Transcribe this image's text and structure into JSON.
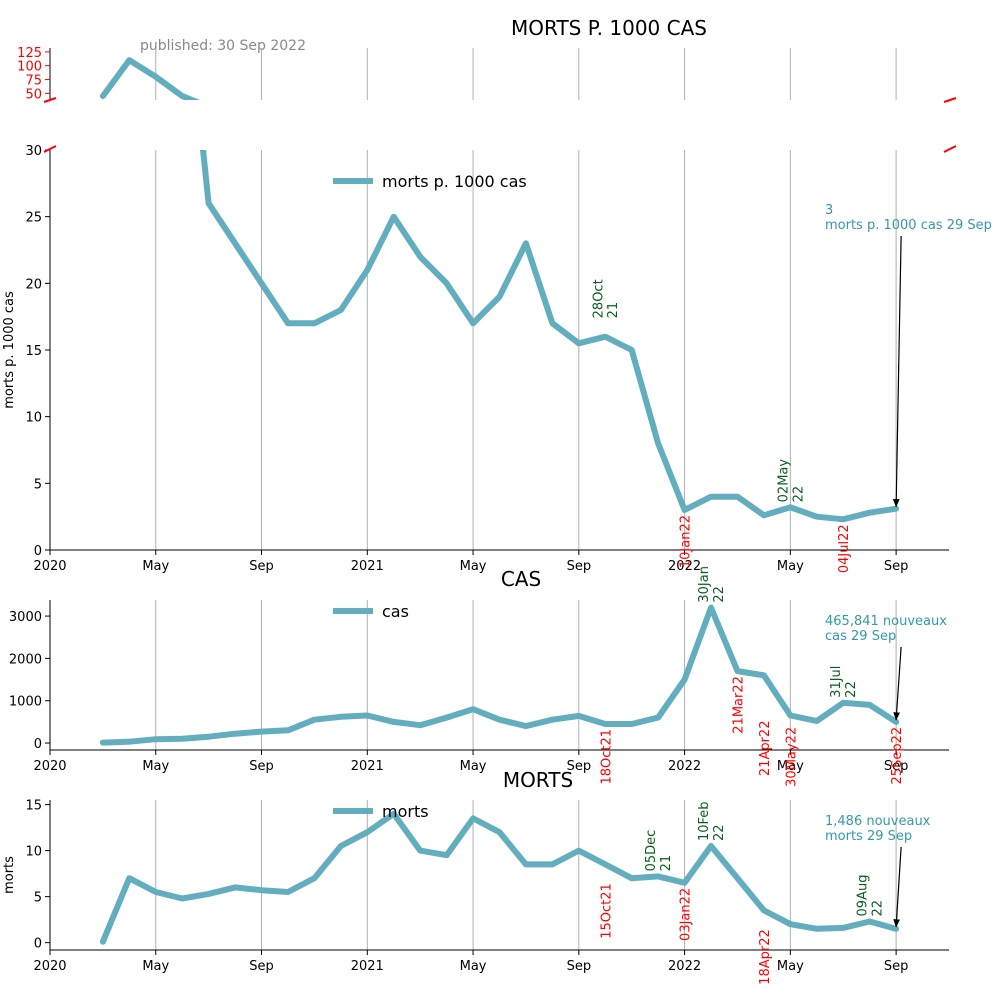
{
  "chart_data": [
    {
      "type": "line",
      "title": "MORTS P. 1000 CAS",
      "subtitle": "published: 30 Sep 2022",
      "ylabel": "morts p. 1000 cas",
      "x": [
        "2020-03",
        "2020-04",
        "2020-05",
        "2020-06",
        "2020-07",
        "2020-08",
        "2020-09",
        "2020-10",
        "2020-11",
        "2020-12",
        "2021-01",
        "2021-02",
        "2021-03",
        "2021-04",
        "2021-05",
        "2021-06",
        "2021-07",
        "2021-08",
        "2021-09",
        "2021-10",
        "2021-11",
        "2021-12",
        "2022-01",
        "2022-02",
        "2022-03",
        "2022-04",
        "2022-05",
        "2022-06",
        "2022-07",
        "2022-08",
        "2022-09"
      ],
      "series": [
        {
          "name": "morts p. 1000 cas",
          "color": "#62aebf",
          "values": [
            45,
            110,
            80,
            45,
            26,
            23,
            20,
            17,
            17,
            18,
            21,
            25,
            22,
            20,
            17,
            19,
            23,
            17,
            15.5,
            16,
            15,
            8,
            3,
            4,
            4,
            2.6,
            3.2,
            2.5,
            2.3,
            2.8,
            3.1
          ]
        }
      ],
      "xlim": [
        "2020-01",
        "2022-11"
      ],
      "xticks": [
        {
          "value": "2020-01",
          "label": "2020"
        },
        {
          "value": "2020-05",
          "label": "May"
        },
        {
          "value": "2020-09",
          "label": "Sep"
        },
        {
          "value": "2021-01",
          "label": "2021"
        },
        {
          "value": "2021-05",
          "label": "May"
        },
        {
          "value": "2021-09",
          "label": "Sep"
        },
        {
          "value": "2022-01",
          "label": "2022"
        },
        {
          "value": "2022-05",
          "label": "May"
        },
        {
          "value": "2022-09",
          "label": "Sep"
        }
      ],
      "ylim": [
        0,
        30
      ],
      "yticks": [
        0,
        5,
        10,
        15,
        20,
        25,
        30
      ],
      "y_break": {
        "ylim": [
          38,
          132
        ],
        "yticks": [
          50,
          75,
          100,
          125
        ],
        "color": "#ff0000"
      },
      "grid": "x",
      "legend": "upper center",
      "annotations": [
        {
          "text": "28Oct\n21",
          "x": "2021-10",
          "y": 17,
          "color": "#0b5d1e"
        },
        {
          "text": "10Jan22",
          "x": "2022-01",
          "y": 3,
          "color": "#ff0000"
        },
        {
          "text": "02May\n22",
          "x": "2022-05",
          "y": 3.2,
          "color": "#0b5d1e"
        },
        {
          "text": "04Jul22",
          "x": "2022-07",
          "y": 2.3,
          "color": "#ff0000"
        }
      ],
      "arrow_annotation": {
        "text": "3\nmorts p. 1000 cas 29 Sep",
        "color": "#3399aa"
      }
    },
    {
      "type": "line",
      "title": "CAS",
      "x": [
        "2020-03",
        "2020-04",
        "2020-05",
        "2020-06",
        "2020-07",
        "2020-08",
        "2020-09",
        "2020-10",
        "2020-11",
        "2020-12",
        "2021-01",
        "2021-02",
        "2021-03",
        "2021-04",
        "2021-05",
        "2021-06",
        "2021-07",
        "2021-08",
        "2021-09",
        "2021-10",
        "2021-11",
        "2021-12",
        "2022-01",
        "2022-02",
        "2022-03",
        "2022-04",
        "2022-05",
        "2022-06",
        "2022-07",
        "2022-08",
        "2022-09"
      ],
      "series": [
        {
          "name": "cas",
          "color": "#62aebf",
          "values": [
            10,
            30,
            90,
            100,
            150,
            220,
            270,
            300,
            550,
            620,
            650,
            500,
            420,
            600,
            800,
            550,
            400,
            550,
            640,
            450,
            450,
            600,
            1500,
            3200,
            1700,
            1600,
            650,
            520,
            950,
            900,
            500
          ]
        }
      ],
      "xlim": [
        "2020-01",
        "2022-11"
      ],
      "xticks": [
        {
          "value": "2020-01",
          "label": "2020"
        },
        {
          "value": "2020-05",
          "label": "May"
        },
        {
          "value": "2020-09",
          "label": "Sep"
        },
        {
          "value": "2021-01",
          "label": "2021"
        },
        {
          "value": "2021-05",
          "label": "May"
        },
        {
          "value": "2021-09",
          "label": "Sep"
        },
        {
          "value": "2022-01",
          "label": "2022"
        },
        {
          "value": "2022-05",
          "label": "May"
        },
        {
          "value": "2022-09",
          "label": "Sep"
        }
      ],
      "ylim": [
        -165,
        3380
      ],
      "yticks": [
        0,
        1000,
        2000,
        3000
      ],
      "grid": "x",
      "legend": "upper center",
      "annotations": [
        {
          "text": "18Oct21",
          "x": "2021-10",
          "y": 450,
          "color": "#ff0000"
        },
        {
          "text": "30Jan\n22",
          "x": "2022-02",
          "y": 3200,
          "color": "#0b5d1e"
        },
        {
          "text": "21Mar22",
          "x": "2022-03",
          "y": 1700,
          "color": "#ff0000"
        },
        {
          "text": "21Apr22",
          "x": "2022-04",
          "y": 650,
          "color": "#ff0000"
        },
        {
          "text": "30May22",
          "x": "2022-05",
          "y": 500,
          "color": "#ff0000"
        },
        {
          "text": "31Jul\n22",
          "x": "2022-07",
          "y": 950,
          "color": "#0b5d1e"
        },
        {
          "text": "25Sep22",
          "x": "2022-09",
          "y": 500,
          "color": "#ff0000"
        }
      ],
      "arrow_annotation": {
        "text": "465,841 nouveaux\ncas 29 Sep",
        "color": "#3399aa"
      }
    },
    {
      "type": "line",
      "title": "MORTS",
      "ylabel": "morts",
      "x": [
        "2020-03",
        "2020-04",
        "2020-05",
        "2020-06",
        "2020-07",
        "2020-08",
        "2020-09",
        "2020-10",
        "2020-11",
        "2020-12",
        "2021-01",
        "2021-02",
        "2021-03",
        "2021-04",
        "2021-05",
        "2021-06",
        "2021-07",
        "2021-08",
        "2021-09",
        "2021-10",
        "2021-11",
        "2021-12",
        "2022-01",
        "2022-02",
        "2022-03",
        "2022-04",
        "2022-05",
        "2022-06",
        "2022-07",
        "2022-08",
        "2022-09"
      ],
      "series": [
        {
          "name": "morts",
          "color": "#62aebf",
          "values": [
            0.1,
            7,
            5.5,
            4.8,
            5.3,
            6,
            5.7,
            5.5,
            7,
            10.5,
            12,
            14,
            10,
            9.5,
            13.5,
            12,
            8.5,
            8.5,
            10,
            8.5,
            7,
            7.2,
            6.5,
            10.5,
            7,
            3.5,
            2,
            1.5,
            1.6,
            2.3,
            1.5
          ]
        }
      ],
      "xlim": [
        "2020-01",
        "2022-11"
      ],
      "xticks": [
        {
          "value": "2020-01",
          "label": "2020"
        },
        {
          "value": "2020-05",
          "label": "May"
        },
        {
          "value": "2020-09",
          "label": "Sep"
        },
        {
          "value": "2021-01",
          "label": "2021"
        },
        {
          "value": "2021-05",
          "label": "May"
        },
        {
          "value": "2021-09",
          "label": "Sep"
        },
        {
          "value": "2022-01",
          "label": "2022"
        },
        {
          "value": "2022-05",
          "label": "May"
        },
        {
          "value": "2022-09",
          "label": "Sep"
        }
      ],
      "ylim": [
        -0.8,
        15.5
      ],
      "yticks": [
        0,
        5,
        10,
        15
      ],
      "grid": "x",
      "legend": "upper center",
      "annotations": [
        {
          "text": "15Oct21",
          "x": "2021-10",
          "y": 7,
          "color": "#ff0000"
        },
        {
          "text": "05Dec\n21",
          "x": "2021-12",
          "y": 7.2,
          "color": "#0b5d1e"
        },
        {
          "text": "03Jan22",
          "x": "2022-01",
          "y": 6.5,
          "color": "#ff0000"
        },
        {
          "text": "10Feb\n22",
          "x": "2022-02",
          "y": 10.5,
          "color": "#0b5d1e"
        },
        {
          "text": "18Apr22",
          "x": "2022-04",
          "y": 2,
          "color": "#ff0000"
        },
        {
          "text": "09Aug\n22",
          "x": "2022-08",
          "y": 2.3,
          "color": "#0b5d1e"
        }
      ],
      "arrow_annotation": {
        "text": "1,486 nouveaux\nmorts 29 Sep",
        "color": "#3399aa"
      }
    }
  ]
}
